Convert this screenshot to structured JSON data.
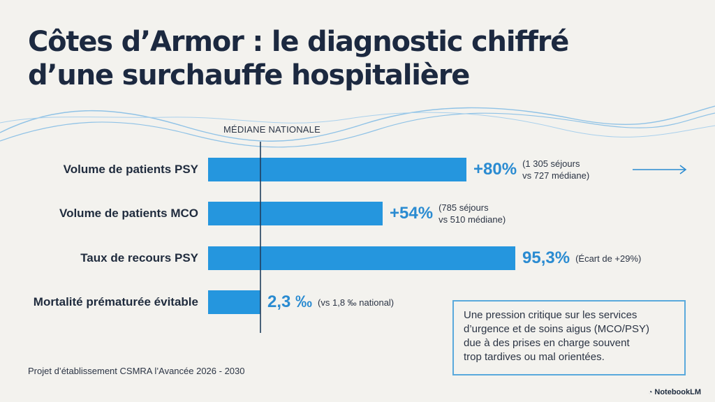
{
  "title": {
    "line1": "Côtes d’Armor : le diagnostic chiffré",
    "line2": "d’une surchauffe hospitalière"
  },
  "median_label": "MÉDIANE NATIONALE",
  "colors": {
    "bar": "#2596de",
    "value": "#2a8bd1",
    "title": "#1c2940",
    "wave": "#7ab6e0"
  },
  "chart_data": {
    "type": "bar",
    "orientation": "horizontal",
    "categories": [
      "Volume de patients PSY",
      "Volume de patients MCO",
      "Taux de recours PSY",
      "Mortalité prématurée évitable"
    ],
    "values": [
      80,
      54,
      29,
      2.3
    ],
    "bars": [
      {
        "label": "Volume de patients PSY",
        "value_text": "+80%",
        "note_line1": "(1 305 séjours",
        "note_line2": "vs 727 médiane)",
        "length_ratio": 0.37
      },
      {
        "label": "Volume de patients MCO",
        "value_text": "+54%",
        "note_line1": "(785 séjours",
        "note_line2": "vs 510 médiane)",
        "length_ratio": 0.25
      },
      {
        "label": "Taux de recours PSY",
        "value_text": "95,3%",
        "note_line1": "(Écart de +29%)",
        "note_line2": "",
        "length_ratio": 0.44
      },
      {
        "label": "Mortalité prématurée évitable",
        "value_text": "2,3 ‰",
        "note_line1": "(vs 1,8 ‰ national)",
        "note_line2": "",
        "length_ratio": 0.075
      }
    ],
    "reference_line": "MÉDIANE NATIONALE",
    "arrow_on_first_bar": true
  },
  "callout": {
    "line1": "Une pression critique sur les services",
    "line2": "d’urgence et de soins aigus (MCO/PSY)",
    "line3": "due à des prises en charge souvent",
    "line4": "trop tardives ou mal orientées."
  },
  "footer": "Projet d’établissement CSMRA l’Avancée 2026 - 2030",
  "brand": "NotebookLM"
}
